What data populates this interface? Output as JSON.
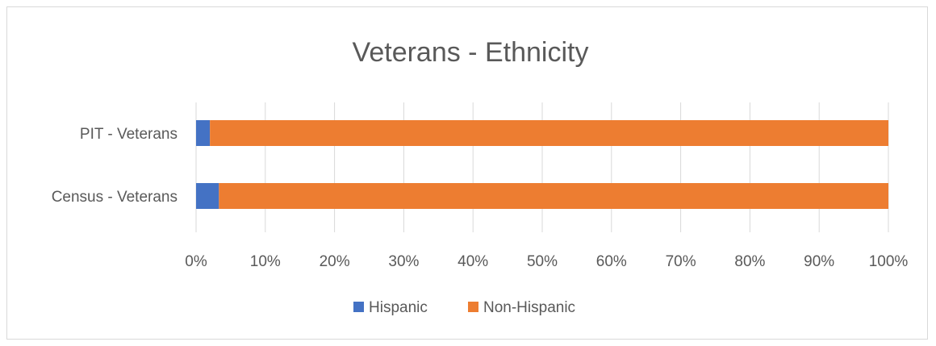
{
  "chart_data": {
    "type": "bar",
    "orientation": "horizontal",
    "stacked": "percent",
    "title": "Veterans - Ethnicity",
    "categories": [
      "PIT - Veterans",
      "Census - Veterans"
    ],
    "series": [
      {
        "name": "Hispanic",
        "color": "#4472C4",
        "values": [
          2,
          3.3
        ]
      },
      {
        "name": "Non-Hispanic",
        "color": "#ED7D31",
        "values": [
          98,
          96.7
        ]
      }
    ],
    "x_ticks": [
      "0%",
      "10%",
      "20%",
      "30%",
      "40%",
      "50%",
      "60%",
      "70%",
      "80%",
      "90%",
      "100%"
    ],
    "xlim": [
      0,
      100
    ],
    "grid": "vertical-gridlines",
    "legend_position": "bottom"
  }
}
